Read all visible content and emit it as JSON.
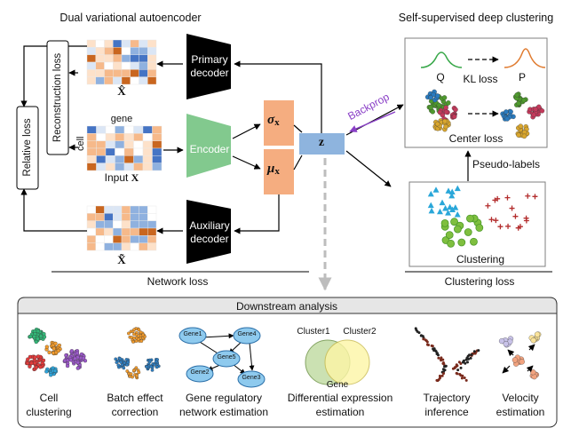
{
  "titles": {
    "dual_vae": "Dual variational  autoencoder",
    "ssdc": "Self-supervised  deep clustering"
  },
  "nodes": {
    "primary_decoder": [
      "Primary",
      "decoder"
    ],
    "encoder": "Encoder",
    "auxiliary_decoder": [
      "Auxiliary",
      "decoder"
    ],
    "sigma": "σ",
    "sigma_sub": "x",
    "mu": "μ",
    "mu_sub": "x",
    "z": "z"
  },
  "labels": {
    "gene": "gene",
    "cell": "cell",
    "input": "Input ",
    "input_x": "X",
    "x_hat": "X̂",
    "x_tilde": "X̃",
    "reconstruction_loss": "Reconstruction loss",
    "relative_loss": "Relative  loss",
    "network_loss": "Network loss",
    "clustering_loss": "Clustering loss",
    "backprop": "Backprop"
  },
  "clustering_panel": {
    "q": "Q",
    "p": "P",
    "kl_loss": "KL loss",
    "center_loss": "Center loss",
    "pseudo_labels": "Pseudo-labels",
    "clustering": "Clustering"
  },
  "downstream": {
    "title": "Downstream  analysis",
    "items": [
      {
        "line1": "Cell",
        "line2": "clustering"
      },
      {
        "line1": "Batch effect",
        "line2": "correction"
      },
      {
        "line1": "Gene regulatory",
        "line2": "network estimation"
      },
      {
        "line1": "Differential  expression",
        "line2": "estimation"
      },
      {
        "line1": "Trajectory",
        "line2": "inference"
      },
      {
        "line1": "Velocity",
        "line2": "estimation"
      }
    ],
    "grn_genes": [
      "Gene1",
      "Gene4",
      "Gene5",
      "Gene2",
      "Gene3"
    ],
    "venn": {
      "cluster1": "Cluster1",
      "cluster2": "Cluster2",
      "gene": "Gene"
    }
  },
  "colors": {
    "decoder": "#000000",
    "encoder": "#82c98e",
    "latent": "#f5ad80",
    "z": "#8eb4de",
    "backprop": "#8a3fc7",
    "heat_orange": "#f6b98a",
    "heat_blue": "#8fb1df",
    "heat_dark_orange": "#c9661f",
    "heat_dark_blue": "#4574c4",
    "gene_node": "#8ecaee",
    "venn_green": "#c9e0ae",
    "venn_yellow": "#fdf6a6",
    "cluster_blue": "#2aa7d9",
    "cluster_green": "#4c9a2a",
    "cluster_red": "#b32d2d"
  }
}
